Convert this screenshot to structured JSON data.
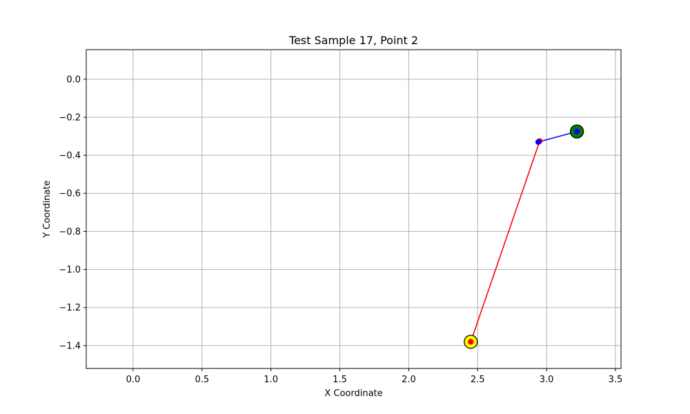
{
  "chart_data": {
    "type": "scatter",
    "title": "Test Sample 17, Point 2",
    "xlabel": "X Coordinate",
    "ylabel": "Y Coordinate",
    "xlim": [
      -0.34,
      3.54
    ],
    "ylim": [
      -1.52,
      0.155
    ],
    "xticks": [
      0.0,
      0.5,
      1.0,
      1.5,
      2.0,
      2.5,
      3.0,
      3.5
    ],
    "xtick_labels": [
      "0.0",
      "0.5",
      "1.0",
      "1.5",
      "2.0",
      "2.5",
      "3.0",
      "3.5"
    ],
    "yticks": [
      0.0,
      -0.2,
      -0.4,
      -0.6,
      -0.8,
      -1.0,
      -1.2,
      -1.4
    ],
    "ytick_labels": [
      "0.0",
      "−0.2",
      "−0.4",
      "−0.6",
      "−0.8",
      "−1.0",
      "−1.2",
      "−1.4"
    ],
    "grid": true,
    "series": [
      {
        "color": "#ff0000",
        "points": [
          [
            2.45,
            -1.38
          ],
          [
            2.95,
            -0.325
          ]
        ]
      },
      {
        "color": "#0000ff",
        "points": [
          [
            2.94,
            -0.33
          ],
          [
            3.22,
            -0.275
          ]
        ]
      }
    ],
    "markers": [
      {
        "x": 2.45,
        "y": -1.38,
        "fill": "#ffff00",
        "edge": "#000000",
        "kind": "large"
      },
      {
        "x": 3.22,
        "y": -0.275,
        "fill": "#008000",
        "edge": "#000000",
        "kind": "large"
      }
    ]
  }
}
